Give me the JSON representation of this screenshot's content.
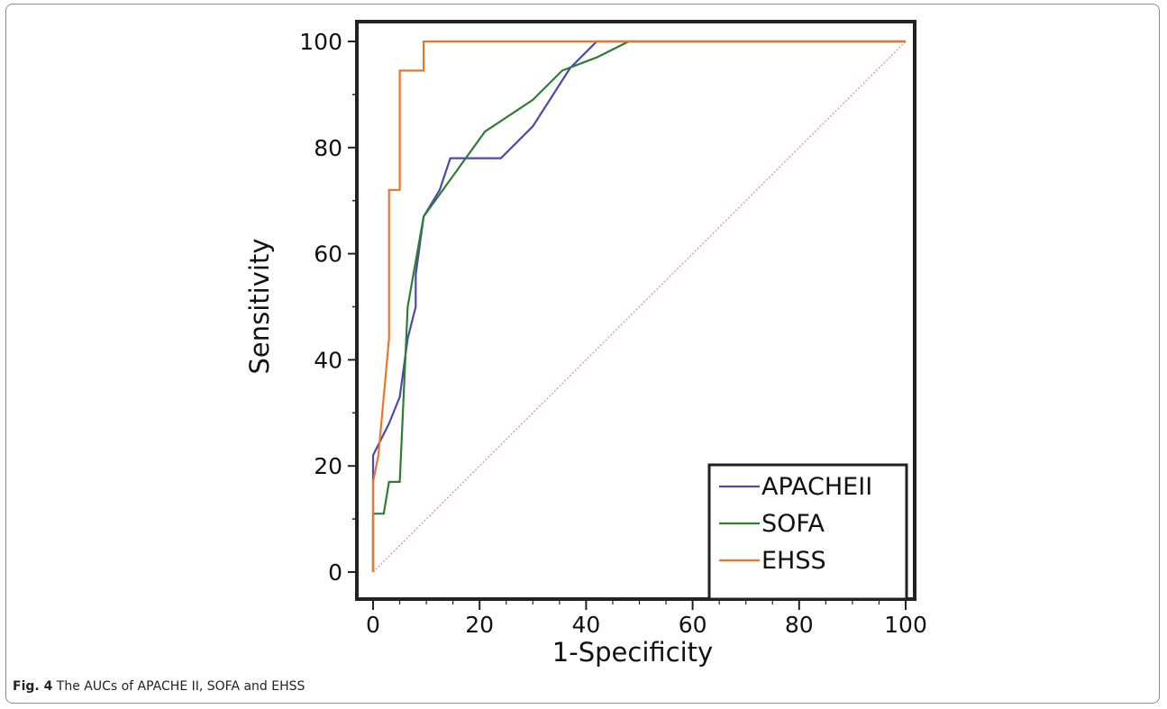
{
  "caption": {
    "label": "Fig. 4",
    "text": "The AUCs of APACHE II, SOFA and EHSS"
  },
  "chart_data": {
    "type": "line",
    "title": "",
    "xlabel": "1-Specificity",
    "ylabel": "Sensitivity",
    "xlim": [
      0,
      100
    ],
    "ylim": [
      0,
      100
    ],
    "xticks": [
      0,
      20,
      40,
      60,
      80,
      100
    ],
    "yticks": [
      0,
      20,
      40,
      60,
      80,
      100
    ],
    "legend_position": "bottom-right",
    "series": [
      {
        "name": "APACHEII",
        "color": "#4a4aa8",
        "points": [
          [
            0,
            0
          ],
          [
            0,
            17
          ],
          [
            0,
            22
          ],
          [
            1,
            24
          ],
          [
            3,
            28
          ],
          [
            5,
            33
          ],
          [
            6.5,
            44
          ],
          [
            8,
            50
          ],
          [
            8,
            56
          ],
          [
            9.5,
            67
          ],
          [
            12.5,
            72
          ],
          [
            14.5,
            78
          ],
          [
            24,
            78
          ],
          [
            30,
            84
          ],
          [
            37,
            95
          ],
          [
            42,
            100
          ],
          [
            100,
            100
          ]
        ]
      },
      {
        "name": "SOFA",
        "color": "#2e7d32",
        "points": [
          [
            0,
            0
          ],
          [
            0,
            11
          ],
          [
            2,
            11
          ],
          [
            3,
            17
          ],
          [
            5,
            17
          ],
          [
            6.5,
            50
          ],
          [
            9.5,
            67
          ],
          [
            21,
            83
          ],
          [
            30,
            89
          ],
          [
            35.5,
            94.5
          ],
          [
            42,
            97
          ],
          [
            48,
            100
          ],
          [
            100,
            100
          ]
        ]
      },
      {
        "name": "EHSS",
        "color": "#e8772e",
        "points": [
          [
            0,
            0
          ],
          [
            0,
            17
          ],
          [
            1,
            22
          ],
          [
            3,
            44
          ],
          [
            3,
            72
          ],
          [
            5,
            72
          ],
          [
            5,
            94.5
          ],
          [
            9.5,
            94.5
          ],
          [
            9.5,
            100
          ],
          [
            100,
            100
          ]
        ]
      }
    ],
    "reference_line": {
      "color": "#e08a8a",
      "points": [
        [
          0,
          0
        ],
        [
          100,
          100
        ]
      ]
    }
  }
}
